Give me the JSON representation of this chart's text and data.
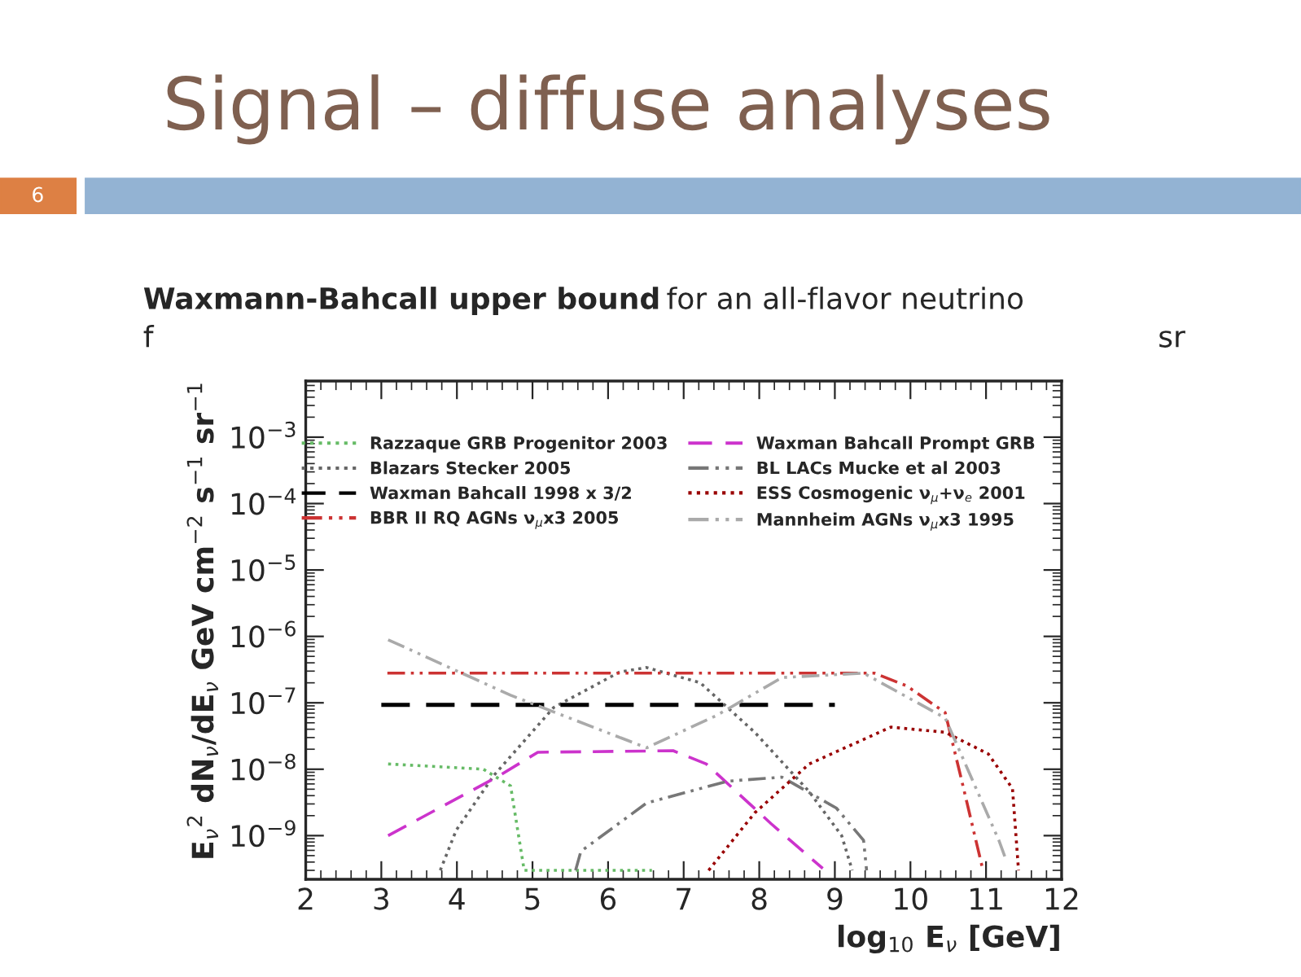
{
  "chart_data": {
    "type": "line",
    "title": "Signal – diffuse analyses",
    "annotations": [
      "6",
      "Waxmann-Bahcall upper bound",
      "for an all-flavor neutrino",
      "f",
      "sr"
    ],
    "xlabel": "log$_{10}$ E$_{ν}$ [GeV]",
    "ylabel": "E$_{ν}$$^{2}$ dN$_{ν}$/dE$_{ν}$ GeV cm$^{−2}$ s$^{−1}$ sr$^{−1}$",
    "log": "y",
    "grid": false,
    "legend": "top",
    "marker": "none",
    "xlim": [
      2,
      12
    ],
    "xticks": [
      2,
      3,
      4,
      5,
      6,
      7,
      8,
      9,
      10,
      11,
      12
    ],
    "ylim": [
      2.2e-10,
      0.007
    ],
    "yticks": [
      {
        "value": 1e-09,
        "label": "10$^{−9}$"
      },
      {
        "value": 1e-08,
        "label": "10$^{−8}$"
      },
      {
        "value": 1e-07,
        "label": "10$^{−7}$"
      },
      {
        "value": 1e-06,
        "label": "10$^{−6}$"
      },
      {
        "value": 1e-05,
        "label": "10$^{−5}$"
      },
      {
        "value": 0.0001,
        "label": "10$^{−4}$"
      },
      {
        "value": 0.001,
        "label": "10$^{−3}$"
      }
    ],
    "series": [
      {
        "name": "Razzaque GRB Progenitor 2003",
        "color": "#66bb66",
        "line_style": "dotted",
        "x": [
          3.09,
          4.35,
          4.71,
          4.89,
          6.58
        ],
        "values": [
          1.2e-08,
          1e-08,
          5.6e-09,
          3e-10,
          3e-10
        ]
      },
      {
        "name": "Blazars Stecker 2005",
        "color": "#666666",
        "line_style": "dotted",
        "x": [
          3.78,
          3.99,
          4.49,
          5.28,
          6.15,
          6.51,
          7.22,
          7.94,
          8.66,
          9.09,
          9.23
        ],
        "values": [
          3e-10,
          1.2e-09,
          8.1e-09,
          8.5e-08,
          2.9e-07,
          3.4e-07,
          2e-07,
          3.6e-08,
          4.6e-09,
          1e-09,
          3e-10
        ]
      },
      {
        "name": "Waxman Bahcall 1998 x 3/2",
        "color": "#000000",
        "line_style": "dashed",
        "x": [
          3,
          9
        ],
        "values": [
          9.3e-08,
          9.3e-08
        ]
      },
      {
        "name": "BBR II RQ AGNs ν$_{μ}$x3 2005",
        "color": "#cc3333",
        "line_style": "dashdot",
        "x": [
          3.08,
          9.52,
          9.95,
          10.46,
          10.67,
          10.96
        ],
        "values": [
          2.8e-07,
          2.8e-07,
          1.8e-07,
          7.1e-08,
          7.4e-09,
          3e-10
        ]
      },
      {
        "name": "Waxman Bahcall Prompt GRB",
        "color": "#cc33cc",
        "line_style": "dashed",
        "x": [
          3.09,
          4.57,
          5.07,
          6.86,
          7.3,
          8.16,
          8.84
        ],
        "values": [
          1e-09,
          8.1e-09,
          1.8e-08,
          1.9e-08,
          1.2e-08,
          1.5e-09,
          3.2e-10
        ]
      },
      {
        "name": "BL LACs Mucke et al 2003",
        "color": "#777777",
        "line_style": "dashdot",
        "x": [
          5.57,
          5.64,
          6.51,
          7.58,
          8.3,
          9.02,
          9.38,
          9.42
        ],
        "values": [
          3e-10,
          5.8e-10,
          3.1e-09,
          6.6e-09,
          7.6e-09,
          2.6e-09,
          8.5e-10,
          3e-10
        ]
      },
      {
        "name": "ESS Cosmogenic ν$_{μ}$+ν$_{e}$ 2001",
        "color": "#990000",
        "line_style": "dotted",
        "x": [
          7.33,
          7.94,
          8.66,
          9.74,
          10.46,
          11.03,
          11.35,
          11.43
        ],
        "values": [
          3e-10,
          2.2e-09,
          1.2e-08,
          4.3e-08,
          3.6e-08,
          1.7e-08,
          5.1e-09,
          3e-10
        ]
      },
      {
        "name": "Mannheim AGNs ν$_{μ}$x3 1995",
        "color": "#aaaaaa",
        "line_style": "dashdot",
        "x": [
          3.09,
          4.71,
          6.51,
          7.44,
          8.3,
          9.38,
          10.46,
          11.17,
          11.25
        ],
        "values": [
          8.9e-07,
          1.3e-07,
          2.1e-08,
          6.5e-08,
          2.4e-07,
          2.8e-07,
          5.9e-08,
          8.5e-10,
          4.8e-10
        ]
      }
    ]
  }
}
